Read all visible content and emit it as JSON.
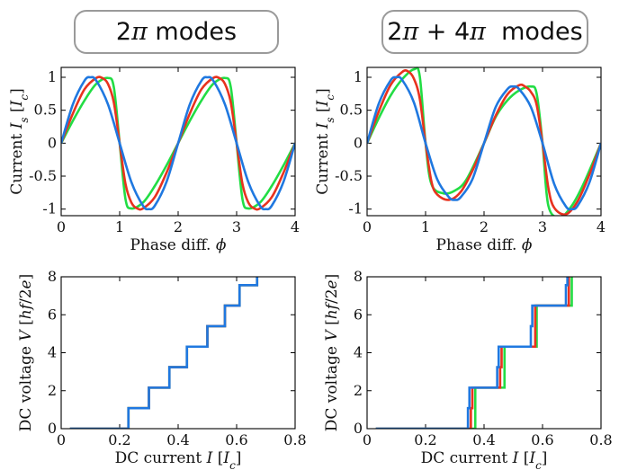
{
  "headers": {
    "left": {
      "num": "2",
      "sym": "π",
      "rest": " modes"
    },
    "right": {
      "num1": "2",
      "sym1": "π",
      "mid": " + 4",
      "sym2": "π",
      "rest": "  modes"
    }
  },
  "colors": {
    "green": "#22dd44",
    "red": "#e8321e",
    "blue": "#1f78e0"
  },
  "chart_data": [
    {
      "id": "cpr-2pi",
      "type": "line",
      "title": "2π modes",
      "xlabel": "Phase diff. ϕ",
      "ylabel": "Current I_s [I_c]",
      "xlim": [
        0,
        4
      ],
      "ylim": [
        -1.1,
        1.15
      ],
      "xticks": [
        "0",
        "1",
        "2",
        "3",
        "4"
      ],
      "yticks": [
        "-1",
        "-0.5",
        "0",
        "0.5",
        "1"
      ],
      "series": [
        {
          "name": "green",
          "color": "#22dd44",
          "x": [
            0,
            0.2,
            0.4,
            0.6,
            0.8,
            0.9,
            1.0,
            1.1,
            1.2,
            1.4,
            1.6,
            1.8,
            2.0,
            2.2,
            2.4,
            2.6,
            2.8,
            2.9,
            3.0,
            3.1,
            3.2,
            3.4,
            3.6,
            3.8,
            4.0
          ],
          "y": [
            0,
            0.34,
            0.65,
            0.9,
            0.99,
            0.85,
            0,
            -0.85,
            -0.99,
            -0.9,
            -0.65,
            -0.34,
            0,
            0.34,
            0.65,
            0.9,
            0.99,
            0.85,
            0,
            -0.85,
            -0.99,
            -0.9,
            -0.65,
            -0.34,
            0
          ]
        },
        {
          "name": "red",
          "color": "#e8321e",
          "x": [
            0,
            0.2,
            0.4,
            0.6,
            0.7,
            0.8,
            0.9,
            1.0,
            1.1,
            1.2,
            1.3,
            1.4,
            1.6,
            1.8,
            2.0,
            2.2,
            2.4,
            2.6,
            2.7,
            2.8,
            2.9,
            3.0,
            3.1,
            3.2,
            3.3,
            3.4,
            3.6,
            3.8,
            4.0
          ],
          "y": [
            0,
            0.45,
            0.82,
            0.99,
            0.99,
            0.9,
            0.62,
            0,
            -0.62,
            -0.9,
            -0.99,
            -0.99,
            -0.82,
            -0.45,
            0,
            0.45,
            0.82,
            0.99,
            0.99,
            0.9,
            0.62,
            0,
            -0.62,
            -0.9,
            -0.99,
            -0.99,
            -0.82,
            -0.45,
            0
          ]
        },
        {
          "name": "blue",
          "color": "#1f78e0",
          "x": [
            0,
            0.2,
            0.4,
            0.5,
            0.6,
            0.8,
            1.0,
            1.2,
            1.4,
            1.5,
            1.6,
            1.8,
            2.0,
            2.2,
            2.4,
            2.5,
            2.6,
            2.8,
            3.0,
            3.2,
            3.4,
            3.5,
            3.6,
            3.8,
            4.0
          ],
          "y": [
            0,
            0.59,
            0.95,
            1.0,
            0.95,
            0.59,
            0,
            -0.59,
            -0.95,
            -1.0,
            -0.95,
            -0.59,
            0,
            0.59,
            0.95,
            1.0,
            0.95,
            0.59,
            0,
            -0.59,
            -0.95,
            -1.0,
            -0.95,
            -0.59,
            0
          ]
        }
      ]
    },
    {
      "id": "cpr-2pi4pi",
      "type": "line",
      "title": "2π + 4π modes",
      "xlabel": "Phase diff. ϕ",
      "ylabel": "Current I_s [I_c]",
      "xlim": [
        0,
        4
      ],
      "ylim": [
        -1.1,
        1.15
      ],
      "xticks": [
        "0",
        "1",
        "2",
        "3",
        "4"
      ],
      "yticks": [
        "-1",
        "-0.5",
        "0",
        "0.5",
        "1"
      ],
      "series": [
        {
          "name": "green",
          "color": "#22dd44",
          "x": [
            0,
            0.2,
            0.4,
            0.6,
            0.8,
            0.9,
            1.0,
            1.1,
            1.3,
            1.5,
            1.7,
            2.0,
            2.2,
            2.4,
            2.6,
            2.8,
            2.9,
            3.0,
            3.1,
            3.3,
            3.5,
            3.7,
            4.0
          ],
          "y": [
            0,
            0.38,
            0.72,
            0.97,
            1.12,
            1.02,
            0,
            -0.62,
            -0.76,
            -0.72,
            -0.55,
            0,
            0.4,
            0.65,
            0.8,
            0.86,
            0.75,
            0,
            -0.95,
            -1.12,
            -0.95,
            -0.62,
            0
          ]
        },
        {
          "name": "red",
          "color": "#e8321e",
          "x": [
            0,
            0.2,
            0.4,
            0.6,
            0.7,
            0.8,
            0.9,
            1.0,
            1.1,
            1.2,
            1.4,
            1.6,
            1.8,
            2.0,
            2.2,
            2.4,
            2.6,
            2.7,
            2.8,
            2.9,
            3.0,
            3.1,
            3.2,
            3.4,
            3.6,
            3.8,
            4.0
          ],
          "y": [
            0,
            0.48,
            0.88,
            1.08,
            1.09,
            0.98,
            0.68,
            0,
            -0.58,
            -0.78,
            -0.86,
            -0.74,
            -0.42,
            0,
            0.42,
            0.74,
            0.88,
            0.86,
            0.78,
            0.58,
            0,
            -0.68,
            -0.98,
            -1.08,
            -0.88,
            -0.48,
            0
          ]
        },
        {
          "name": "blue",
          "color": "#1f78e0",
          "x": [
            0,
            0.2,
            0.4,
            0.5,
            0.6,
            0.8,
            1.0,
            1.2,
            1.4,
            1.5,
            1.6,
            1.8,
            2.0,
            2.2,
            2.4,
            2.5,
            2.6,
            2.8,
            3.0,
            3.2,
            3.4,
            3.5,
            3.6,
            3.8,
            4.0
          ],
          "y": [
            0,
            0.6,
            0.95,
            1.0,
            0.96,
            0.62,
            0,
            -0.55,
            -0.82,
            -0.86,
            -0.82,
            -0.55,
            0,
            0.55,
            0.82,
            0.86,
            0.82,
            0.55,
            0,
            -0.62,
            -0.96,
            -1.0,
            -0.95,
            -0.6,
            0
          ]
        }
      ]
    },
    {
      "id": "iv-2pi",
      "type": "line",
      "xlabel": "DC current I [I_c]",
      "ylabel": "DC voltage V  [hf/2e]",
      "xlim": [
        0,
        0.8
      ],
      "ylim": [
        0,
        8
      ],
      "xticks": [
        "0",
        "0.2",
        "0.4",
        "0.6",
        "0.8"
      ],
      "yticks": [
        "0",
        "2",
        "4",
        "6",
        "8"
      ],
      "series": [
        {
          "name": "green",
          "color": "#22dd44",
          "x": [
            0.03,
            0.23,
            0.23,
            0.3,
            0.3,
            0.37,
            0.37,
            0.43,
            0.43,
            0.5,
            0.5,
            0.56,
            0.56,
            0.61,
            0.61,
            0.67,
            0.67
          ],
          "y": [
            0,
            0,
            1.08,
            1.08,
            2.16,
            2.16,
            3.24,
            3.24,
            4.32,
            4.32,
            5.4,
            5.4,
            6.48,
            6.48,
            7.56,
            7.56,
            8.0
          ]
        },
        {
          "name": "red",
          "color": "#e8321e",
          "x": [
            0.03,
            0.23,
            0.23,
            0.3,
            0.3,
            0.37,
            0.37,
            0.43,
            0.43,
            0.5,
            0.5,
            0.56,
            0.56,
            0.61,
            0.61,
            0.67,
            0.67
          ],
          "y": [
            0,
            0,
            1.08,
            1.08,
            2.16,
            2.16,
            3.24,
            3.24,
            4.32,
            4.32,
            5.4,
            5.4,
            6.48,
            6.48,
            7.56,
            7.56,
            8.0
          ]
        },
        {
          "name": "blue",
          "color": "#1f78e0",
          "x": [
            0.03,
            0.23,
            0.23,
            0.3,
            0.3,
            0.37,
            0.37,
            0.43,
            0.43,
            0.5,
            0.5,
            0.56,
            0.56,
            0.61,
            0.61,
            0.67,
            0.67
          ],
          "y": [
            0,
            0,
            1.08,
            1.08,
            2.16,
            2.16,
            3.24,
            3.24,
            4.32,
            4.32,
            5.4,
            5.4,
            6.48,
            6.48,
            7.56,
            7.56,
            8.0
          ]
        }
      ]
    },
    {
      "id": "iv-2pi4pi",
      "type": "line",
      "xlabel": "DC current I [I_c]",
      "ylabel": "DC voltage V  [hf/2e]",
      "xlim": [
        0,
        0.8
      ],
      "ylim": [
        0,
        8
      ],
      "xticks": [
        "0",
        "0.2",
        "0.4",
        "0.6",
        "0.8"
      ],
      "yticks": [
        "0",
        "2",
        "4",
        "6",
        "8"
      ],
      "series": [
        {
          "name": "green",
          "color": "#22dd44",
          "x": [
            0.03,
            0.37,
            0.37,
            0.47,
            0.47,
            0.58,
            0.58,
            0.7,
            0.7
          ],
          "y": [
            0,
            0,
            2.16,
            2.16,
            4.32,
            4.32,
            6.48,
            6.48,
            8.0
          ]
        },
        {
          "name": "red",
          "color": "#e8321e",
          "x": [
            0.03,
            0.355,
            0.355,
            0.36,
            0.36,
            0.455,
            0.455,
            0.46,
            0.46,
            0.575,
            0.575,
            0.69,
            0.69
          ],
          "y": [
            0,
            0,
            1.08,
            1.08,
            2.16,
            2.16,
            3.24,
            3.24,
            4.32,
            4.32,
            6.48,
            6.48,
            8.0
          ]
        },
        {
          "name": "blue",
          "color": "#1f78e0",
          "x": [
            0.03,
            0.345,
            0.345,
            0.35,
            0.35,
            0.445,
            0.445,
            0.45,
            0.45,
            0.56,
            0.56,
            0.565,
            0.565,
            0.68,
            0.68,
            0.685,
            0.685
          ],
          "y": [
            0,
            0,
            1.08,
            1.08,
            2.16,
            2.16,
            3.24,
            3.24,
            4.32,
            4.32,
            5.4,
            5.4,
            6.48,
            6.48,
            7.56,
            7.56,
            8.0
          ]
        }
      ]
    }
  ]
}
